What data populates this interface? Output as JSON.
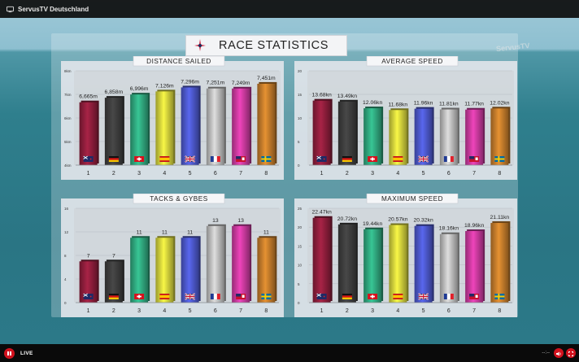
{
  "window": {
    "channel": "ServusTV Deutschland"
  },
  "player": {
    "live_label": "LIVE",
    "time": "--:--"
  },
  "header": {
    "title": "RACE STATISTICS",
    "watermark": "ServusTV"
  },
  "colors": [
    "#8c1d3a",
    "#3c3c3c",
    "#2fa57c",
    "#cfce3a",
    "#4a56c6",
    "#b9b9b9",
    "#c7399c",
    "#c0792a"
  ],
  "flags": [
    "nz-flag",
    "de-flag",
    "ch-flag",
    "es-flag",
    "gb-flag",
    "fr-flag",
    "bm-flag",
    "se-flag"
  ],
  "chart_data": [
    {
      "type": "bar",
      "title": "DISTANCE SAILED",
      "categories": [
        "1",
        "2",
        "3",
        "4",
        "5",
        "6",
        "7",
        "8"
      ],
      "values": [
        6665,
        6858,
        6996,
        7126,
        7296,
        7251,
        7249,
        7451
      ],
      "value_labels": [
        "6,665m",
        "6,858m",
        "6,996m",
        "7,126m",
        "7,296m",
        "7,251m",
        "7,249m",
        "7,451m"
      ],
      "y_ticks": [
        "8km",
        "7km",
        "6km",
        "5km",
        "4km"
      ],
      "y_tick_values": [
        8000,
        7000,
        6000,
        5000,
        4000
      ],
      "ylim": [
        4000,
        8000
      ]
    },
    {
      "type": "bar",
      "title": "AVERAGE SPEED",
      "categories": [
        "1",
        "2",
        "3",
        "4",
        "5",
        "6",
        "7",
        "8"
      ],
      "values": [
        13.68,
        13.49,
        12.06,
        11.68,
        11.96,
        11.81,
        11.77,
        12.02
      ],
      "value_labels": [
        "13.68kn",
        "13.49kn",
        "12.06kn",
        "11.68kn",
        "11.96kn",
        "11.81kn",
        "11.77kn",
        "12.02kn"
      ],
      "y_ticks": [
        "20",
        "15",
        "10",
        "5",
        "0"
      ],
      "y_tick_values": [
        20,
        15,
        10,
        5,
        0
      ],
      "ylim": [
        0,
        20
      ]
    },
    {
      "type": "bar",
      "title": "TACKS & GYBES",
      "categories": [
        "1",
        "2",
        "3",
        "4",
        "5",
        "6",
        "7",
        "8"
      ],
      "values": [
        7,
        7,
        11,
        11,
        11,
        13,
        13,
        11
      ],
      "value_labels": [
        "7",
        "7",
        "11",
        "11",
        "11",
        "13",
        "13",
        "11"
      ],
      "y_ticks": [
        "16",
        "12",
        "8",
        "4",
        "0"
      ],
      "y_tick_values": [
        16,
        12,
        8,
        4,
        0
      ],
      "ylim": [
        0,
        16
      ]
    },
    {
      "type": "bar",
      "title": "MAXIMUM SPEED",
      "categories": [
        "1",
        "2",
        "3",
        "4",
        "5",
        "6",
        "7",
        "8"
      ],
      "values": [
        22.47,
        20.72,
        19.44,
        20.57,
        20.32,
        18.16,
        18.96,
        21.11
      ],
      "value_labels": [
        "22.47kn",
        "20.72kn",
        "19.44kn",
        "20.57kn",
        "20.32kn",
        "18.16kn",
        "18.96kn",
        "21.11kn"
      ],
      "y_ticks": [
        "25",
        "20",
        "15",
        "10",
        "5",
        "0"
      ],
      "y_tick_values": [
        25,
        20,
        15,
        10,
        5,
        0
      ],
      "ylim": [
        0,
        25
      ]
    }
  ]
}
